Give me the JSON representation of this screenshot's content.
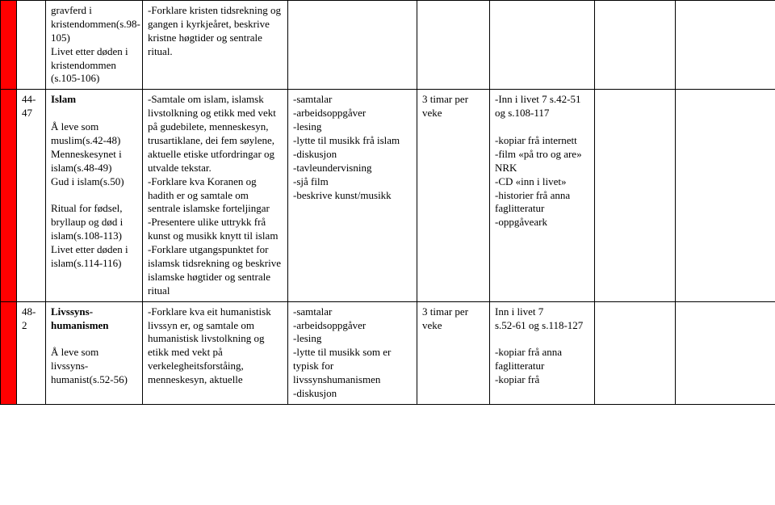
{
  "table": {
    "border_color": "#000000",
    "background_color": "#ffffff",
    "red_cell_color": "#ff0000",
    "font_family": "Times New Roman",
    "font_size_pt": 10,
    "columns": [
      "red",
      "weeks",
      "topic",
      "goals",
      "methods",
      "time",
      "resources",
      "extra1",
      "extra2"
    ],
    "rows": [
      {
        "red": true,
        "weeks": "",
        "topic": "gravferd i kristendommen(s.98-105)\nLivet etter døden i kristendommen (s.105-106)",
        "goals": "-Forklare kristen tidsrekning og gangen i kyrkjeåret, beskrive kristne høgtider og sentrale ritual.",
        "methods": "",
        "time": "",
        "resources": "",
        "extra1": "",
        "extra2": ""
      },
      {
        "red": true,
        "weeks": "44-47",
        "topic_bold": "Islam",
        "topic_rest": "\n\nÅ leve som muslim(s.42-48)\nMenneskesynet i islam(s.48-49)\nGud i islam(s.50)\n\nRitual for fødsel, bryllaup og død i islam(s.108-113)\nLivet etter døden i islam(s.114-116)",
        "goals": "-Samtale om islam, islamsk livstolkning og etikk med vekt på gudebilete, menneskesyn, trusartiklane, dei fem søylene, aktuelle etiske utfordringar og utvalde tekstar.\n-Forklare kva Koranen og hadith er og samtale om sentrale islamske forteljingar\n-Presentere ulike uttrykk frå kunst og musikk knytt til islam\n-Forklare utgangspunktet for islamsk tidsrekning og beskrive islamske høgtider og sentrale ritual",
        "methods": "-samtalar\n-arbeidsoppgåver\n-lesing\n-lytte til musikk frå islam\n-diskusjon\n-tavleundervisning\n-sjå film\n-beskrive kunst/musikk",
        "time": "3 timar per veke",
        "resources": "-Inn i livet 7 s.42-51 og s.108-117\n\n-kopiar frå internett\n-film «på tro og are» NRK\n-CD «inn i livet»\n-historier frå anna faglitteratur\n-oppgåveark",
        "extra1": "",
        "extra2": ""
      },
      {
        "red": true,
        "weeks": "48-2",
        "topic_bold": "Livssyns-humanismen",
        "topic_rest": "\n\nÅ leve som livssyns-humanist(s.52-56)",
        "goals": "-Forklare kva eit humanistisk livssyn er, og samtale om humanistisk livstolkning og etikk med vekt på verkelegheitsforståing, menneskesyn, aktuelle",
        "methods": "-samtalar\n-arbeidsoppgåver\n-lesing\n-lytte til musikk som er typisk for livssynshumanismen\n-diskusjon",
        "time": "3 timar per veke",
        "resources": "Inn i livet 7\ns.52-61 og s.118-127\n\n-kopiar frå anna faglitteratur\n-kopiar frå",
        "extra1": "",
        "extra2": ""
      }
    ]
  }
}
